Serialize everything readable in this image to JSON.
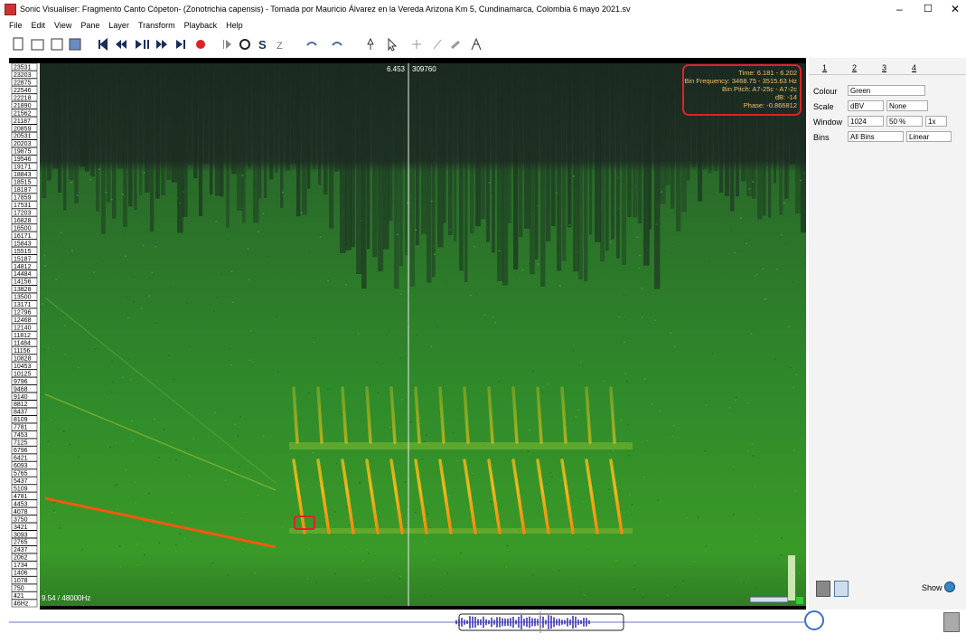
{
  "window": {
    "title": "Sonic Visualiser: Fragmento Canto Cópeton- (Zonotrichia capensis) - Tomada por Mauricio Álvarez en la Vereda Arizona Km 5, Cundinamarca, Colombia 6 mayo 2021.sv"
  },
  "menu": [
    "File",
    "Edit",
    "View",
    "Pane",
    "Layer",
    "Transform",
    "Playback",
    "Help"
  ],
  "pane": {
    "frequency_labels": [
      "23531",
      "23203",
      "22875",
      "22546",
      "22218",
      "21890",
      "21562",
      "21187",
      "20859",
      "20531",
      "20203",
      "19875",
      "19546",
      "19171",
      "18843",
      "18515",
      "18187",
      "17859",
      "17531",
      "17203",
      "16828",
      "16500",
      "16171",
      "15843",
      "15515",
      "15187",
      "14812",
      "14484",
      "14156",
      "13828",
      "13500",
      "13171",
      "12796",
      "12468",
      "12140",
      "11812",
      "11484",
      "11156",
      "10828",
      "10453",
      "10125",
      "9796",
      "9468",
      "9140",
      "8812",
      "8437",
      "8109",
      "7781",
      "7453",
      "7125",
      "6796",
      "6421",
      "6093",
      "5765",
      "5437",
      "5109",
      "4781",
      "4453",
      "4078",
      "3750",
      "3421",
      "3093",
      "2765",
      "2437",
      "2062",
      "1734",
      "1406",
      "1078",
      "750",
      "421",
      "46Hz"
    ],
    "playhead_time": "6.453",
    "playhead_frame": "309760",
    "info": [
      "Time: 6.181 - 6.202",
      "Bin Frequency: 3468.75 - 3515.63 Hz",
      "Bin Pitch: A7-25c - A7-2c",
      "dB: -14",
      "Phase: -0.866812"
    ],
    "scale_info": "9.54 / 48000Hz"
  },
  "panel": {
    "tabs": [
      "1",
      "2",
      "3",
      "4"
    ],
    "rows": [
      {
        "label": "Colour",
        "controls": [
          "Green"
        ]
      },
      {
        "label": "Scale",
        "controls": [
          "dBV",
          "None"
        ]
      },
      {
        "label": "Window",
        "controls": [
          "1024",
          "50 %",
          "1x"
        ]
      },
      {
        "label": "Bins",
        "controls": [
          "All Bins",
          "Linear"
        ]
      }
    ],
    "show": "Show"
  }
}
